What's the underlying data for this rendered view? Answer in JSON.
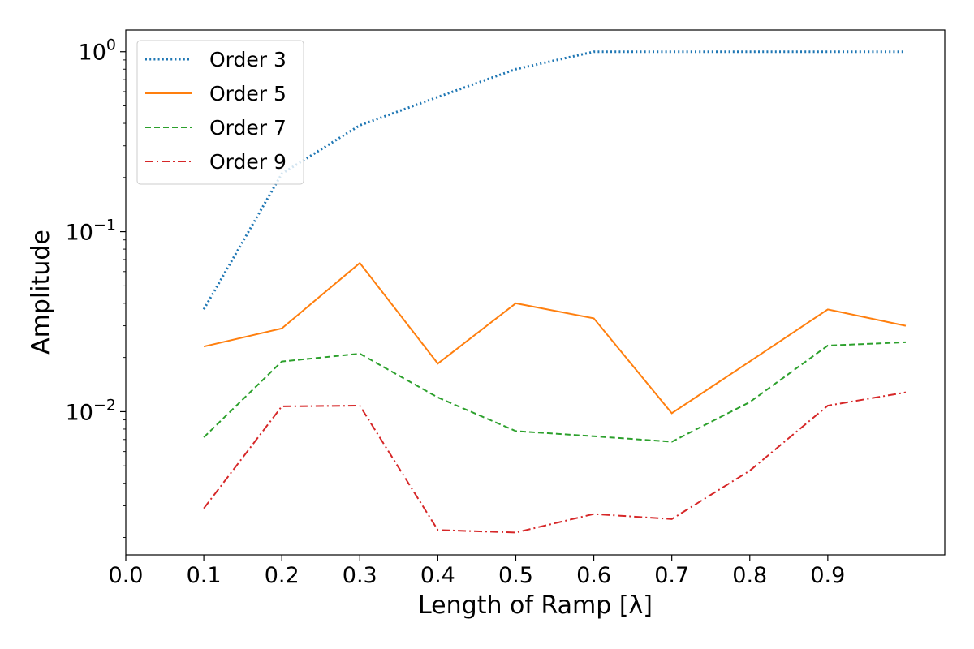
{
  "chart_data": {
    "type": "line",
    "title": "",
    "xlabel": "Length of Ramp [λ]",
    "ylabel": "Amplitude",
    "yscale": "log",
    "xlim": [
      0.0,
      1.05
    ],
    "ylim": [
      0.0016,
      1.32
    ],
    "x_ticks": [
      "0.0",
      "0.1",
      "0.2",
      "0.3",
      "0.4",
      "0.5",
      "0.6",
      "0.7",
      "0.8",
      "0.9"
    ],
    "y_ticks": [
      {
        "base": "10",
        "exp": "0"
      },
      {
        "base": "10",
        "exp": "−1"
      },
      {
        "base": "10",
        "exp": "−2"
      }
    ],
    "grid": false,
    "legend_position": "top-left",
    "x": [
      0.1,
      0.2,
      0.3,
      0.4,
      0.5,
      0.6,
      0.7,
      0.8,
      0.9,
      1.0
    ],
    "series": [
      {
        "name": "Order 3",
        "color": "#1f77b4",
        "style": "dotted",
        "values": [
          0.037,
          0.21,
          0.39,
          0.56,
          0.8,
          1.0,
          1.0,
          1.0,
          1.0,
          1.0
        ]
      },
      {
        "name": "Order 5",
        "color": "#ff7f0e",
        "style": "solid",
        "values": [
          0.023,
          0.029,
          0.067,
          0.0185,
          0.04,
          0.033,
          0.0098,
          0.019,
          0.037,
          0.03
        ]
      },
      {
        "name": "Order 7",
        "color": "#2ca02c",
        "style": "dashed",
        "values": [
          0.0072,
          0.019,
          0.021,
          0.012,
          0.0078,
          0.0073,
          0.0068,
          0.0113,
          0.0233,
          0.0243
        ]
      },
      {
        "name": "Order 9",
        "color": "#d62728",
        "style": "dashdot",
        "values": [
          0.0029,
          0.0107,
          0.0108,
          0.0022,
          0.00213,
          0.0027,
          0.00253,
          0.0047,
          0.0108,
          0.0128
        ]
      }
    ]
  }
}
